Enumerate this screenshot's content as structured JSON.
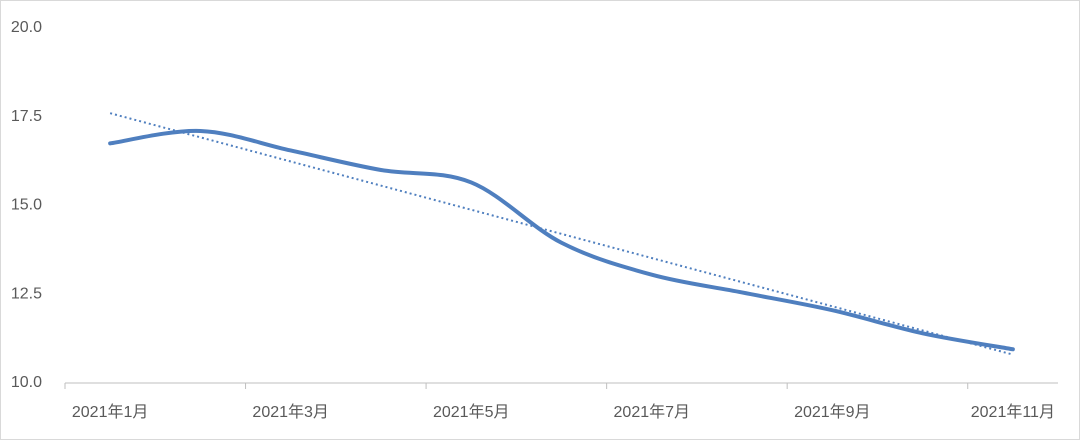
{
  "chart_data": {
    "type": "line",
    "categories": [
      "2021年1月",
      null,
      "2021年3月",
      null,
      "2021年5月",
      null,
      "2021年7月",
      null,
      "2021年9月",
      null,
      "2021年11月"
    ],
    "series": [
      {
        "color": "#4f7fbf",
        "values": [
          16.75,
          17.1,
          16.55,
          16.0,
          15.65,
          13.95,
          13.05,
          12.55,
          12.05,
          11.4,
          10.95
        ]
      }
    ],
    "trendline": {
      "start": 17.6,
      "end": 10.8,
      "color": "#4f7fbf"
    },
    "ylim": [
      10,
      20
    ],
    "yticks": [
      {
        "value": 10,
        "label": "10.0"
      },
      12.5,
      {
        "value": 15,
        "label": "15.0"
      },
      17.5,
      {
        "value": 20,
        "label": "20.0"
      }
    ],
    "grid": false
  }
}
